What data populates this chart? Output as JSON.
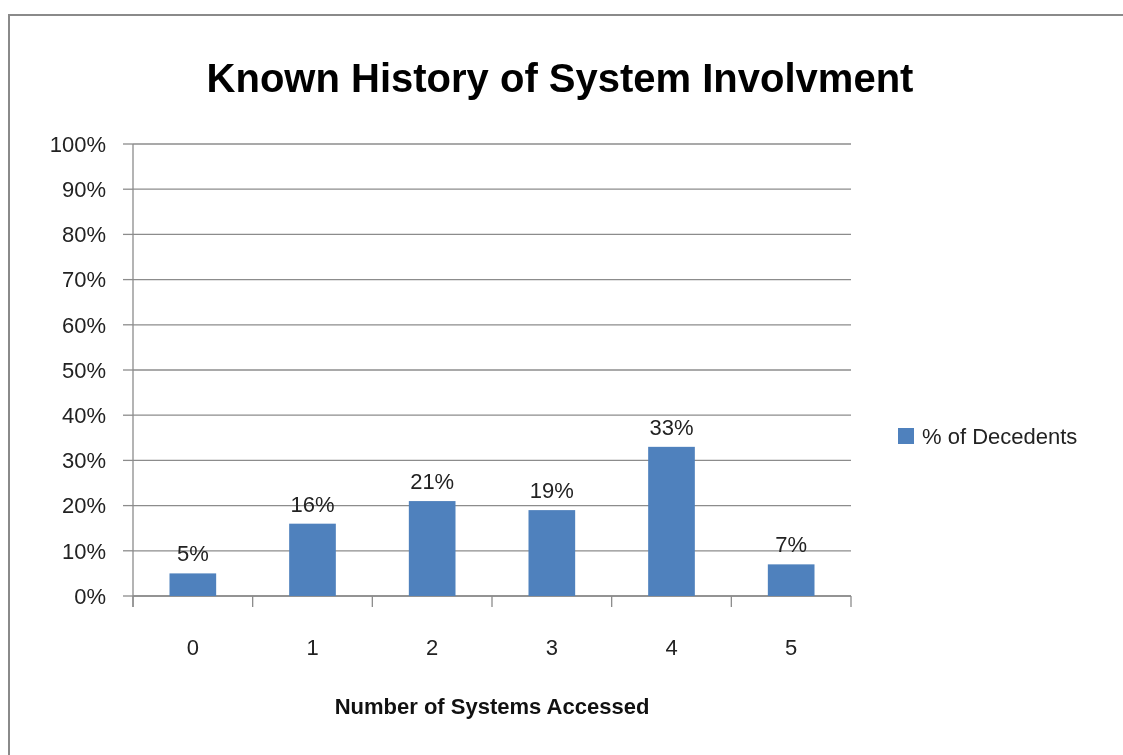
{
  "chart_data": {
    "type": "bar",
    "title": "Known History of System Involvment",
    "xlabel": "Number of Systems Accessed",
    "categories": [
      "0",
      "1",
      "2",
      "3",
      "4",
      "5"
    ],
    "series": [
      {
        "name": "% of Decedents",
        "color": "#4f81bd",
        "values": [
          5,
          16,
          21,
          19,
          33,
          7
        ],
        "value_labels": [
          "5%",
          "16%",
          "21%",
          "19%",
          "33%",
          "7%"
        ]
      }
    ],
    "ylim": [
      0,
      100
    ],
    "yticks": [
      {
        "value": 0,
        "label": "0%"
      },
      {
        "value": 10,
        "label": "10%"
      },
      {
        "value": 20,
        "label": "20%"
      },
      {
        "value": 30,
        "label": "30%"
      },
      {
        "value": 40,
        "label": "40%"
      },
      {
        "value": 50,
        "label": "50%"
      },
      {
        "value": 60,
        "label": "60%"
      },
      {
        "value": 70,
        "label": "70%"
      },
      {
        "value": 80,
        "label": "80%"
      },
      {
        "value": 90,
        "label": "90%"
      },
      {
        "value": 100,
        "label": "100%"
      }
    ],
    "grid": "y",
    "legend": "right"
  }
}
